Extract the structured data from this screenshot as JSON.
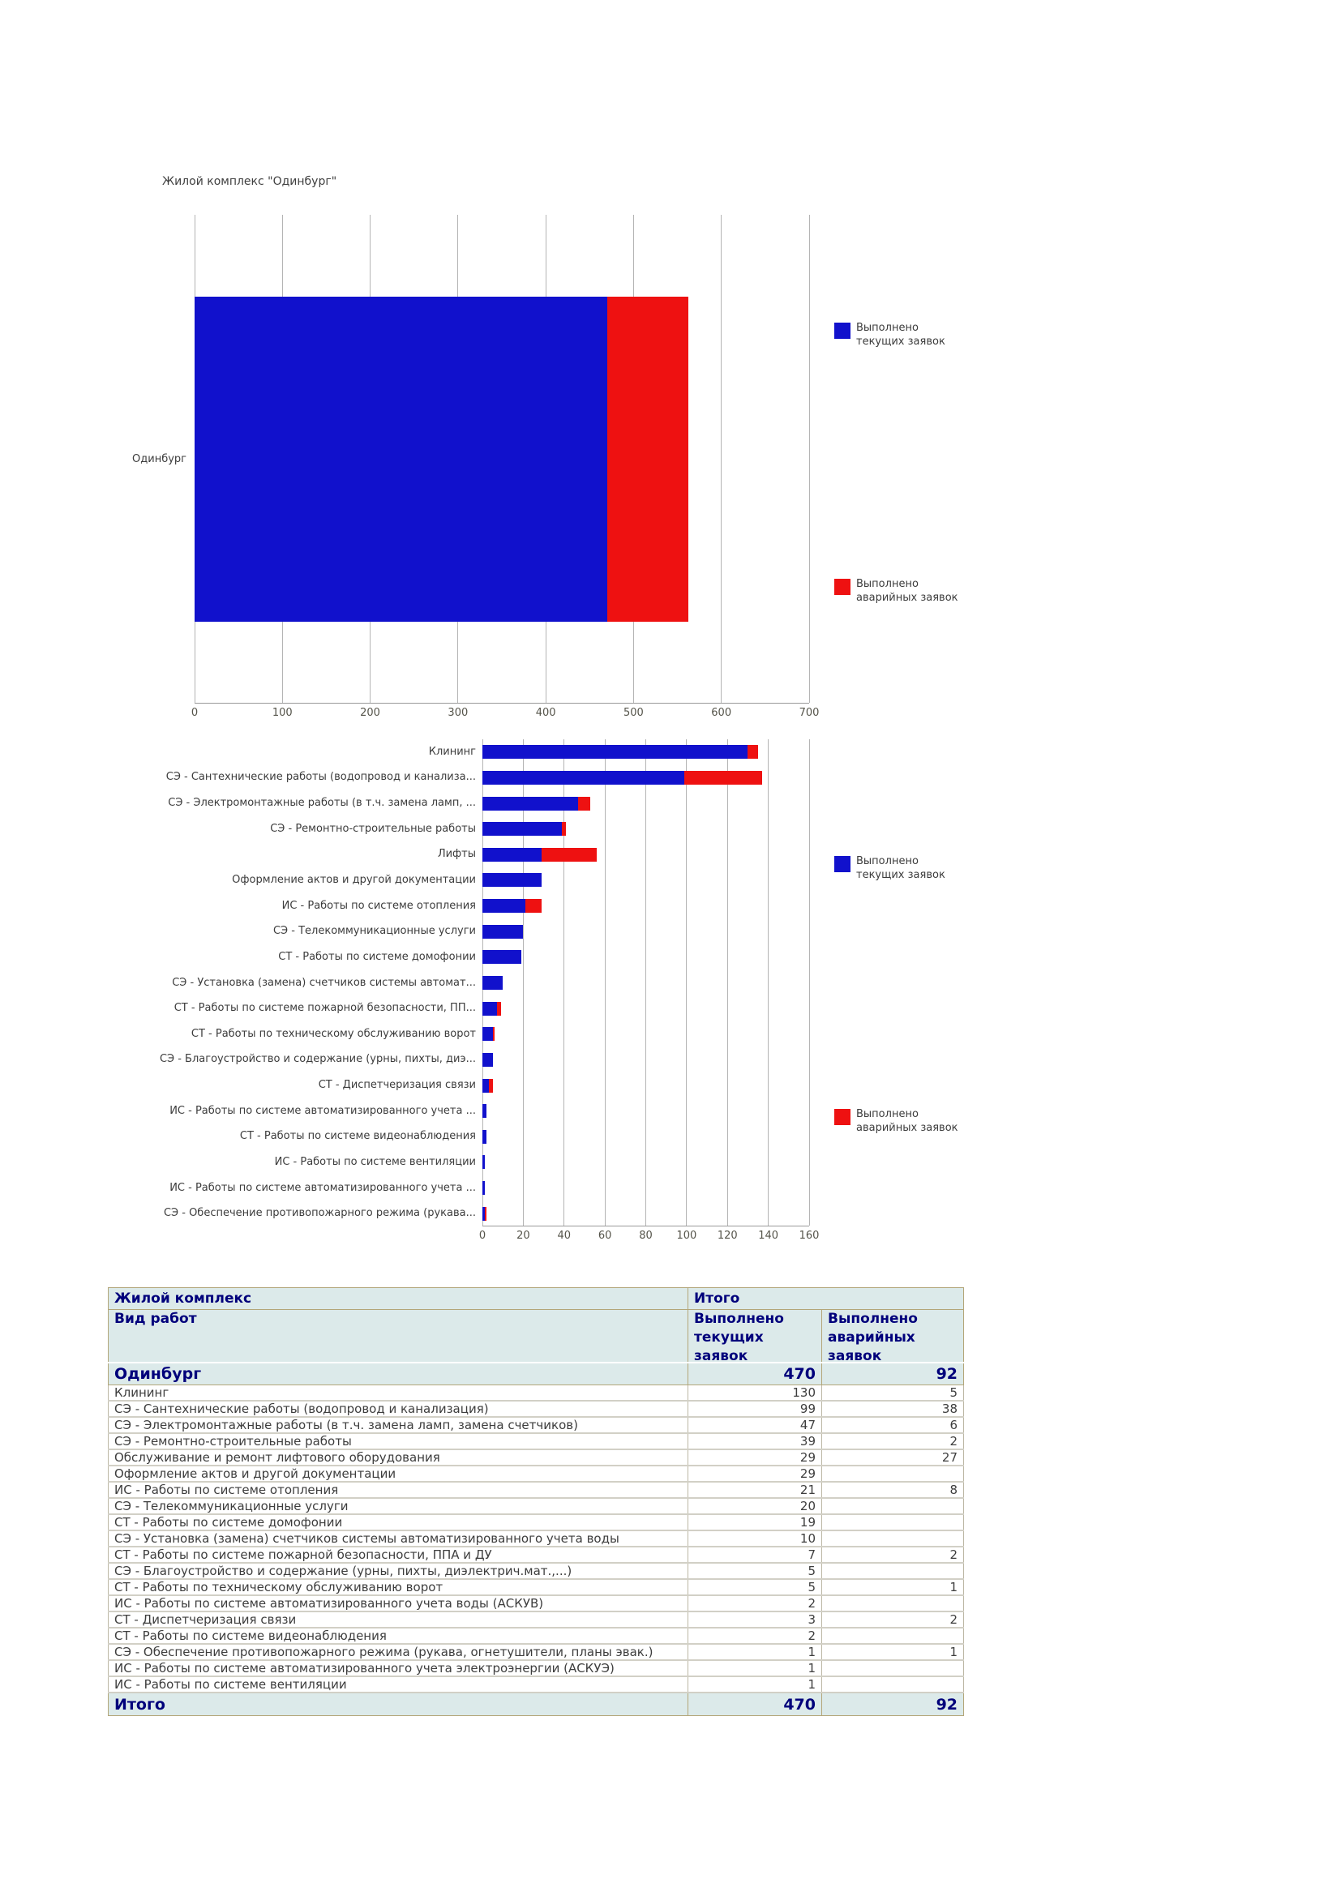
{
  "colors": {
    "current_requests_blue": "#1111cc",
    "emergency_requests_red": "#ee1111",
    "table_header_bg": "#dceaea",
    "table_border_tan": "#b3a679",
    "navy_text": "#00007b"
  },
  "chart_data": [
    {
      "type": "bar",
      "orientation": "horizontal",
      "stacked": true,
      "title": "Жилой комплекс \"Одинбург\"",
      "categories": [
        "Одинбург"
      ],
      "series": [
        {
          "name": "Выполнено текущих заявок",
          "color": "#1111cc",
          "values": [
            470
          ]
        },
        {
          "name": "Выполнено аварийных заявок",
          "color": "#ee1111",
          "values": [
            92
          ]
        }
      ],
      "xlim": [
        0,
        700
      ],
      "xticks": [
        0,
        100,
        200,
        300,
        400,
        500,
        600,
        700
      ],
      "grid": "vertical",
      "legend_position": "right"
    },
    {
      "type": "bar",
      "orientation": "horizontal",
      "stacked": true,
      "title": "",
      "categories": [
        "Клининг",
        "СЭ - Сантехнические работы (водопровод и канализа...",
        "СЭ - Электромонтажные работы (в т.ч. замена ламп, ...",
        "СЭ - Ремонтно-строительные работы",
        "Лифты",
        "Оформление актов и другой документации",
        "ИС - Работы по системе отопления",
        "СЭ - Телекоммуникационные услуги",
        "СТ - Работы по системе домофонии",
        "СЭ - Установка (замена) счетчиков системы автомат...",
        "СТ - Работы по системе пожарной безопасности, ПП...",
        "СТ - Работы по техническому обслуживанию ворот",
        "СЭ - Благоустройство и содержание (урны, пихты, диэ...",
        "СТ - Диспетчеризация связи",
        "ИС - Работы по системе автоматизированного учета ...",
        "СТ - Работы по системе видеонаблюдения",
        "ИС - Работы по системе вентиляции",
        "ИС - Работы по системе автоматизированного учета ...",
        "СЭ - Обеспечение противопожарного режима (рукава..."
      ],
      "series": [
        {
          "name": "Выполнено текущих заявок",
          "color": "#1111cc",
          "values": [
            130,
            99,
            47,
            39,
            29,
            29,
            21,
            20,
            19,
            10,
            7,
            5,
            5,
            3,
            2,
            2,
            1,
            1,
            1
          ]
        },
        {
          "name": "Выполнено аварийных заявок",
          "color": "#ee1111",
          "values": [
            5,
            38,
            6,
            2,
            27,
            0,
            8,
            0,
            0,
            0,
            2,
            1,
            0,
            2,
            0,
            0,
            0,
            0,
            1
          ]
        }
      ],
      "xlim": [
        0,
        160
      ],
      "xticks": [
        0,
        20,
        40,
        60,
        80,
        100,
        120,
        140,
        160
      ],
      "grid": "vertical",
      "legend_position": "right"
    }
  ],
  "table": {
    "header": {
      "complex_label": "Жилой комплекс",
      "total_label": "Итого",
      "work_type_label": "Вид работ",
      "current_label": "Выполнено текущих заявок",
      "emergency_label": "Выполнено аварийных заявок"
    },
    "groups": [
      {
        "label": "Одинбург",
        "current": "470",
        "emergency": "92",
        "rows": [
          {
            "label": "Клининг",
            "current": "130",
            "emergency": "5"
          },
          {
            "label": "СЭ - Сантехнические работы (водопровод и канализация)",
            "current": "99",
            "emergency": "38"
          },
          {
            "label": "СЭ - Электромонтажные работы (в т.ч. замена ламп, замена счетчиков)",
            "current": "47",
            "emergency": "6"
          },
          {
            "label": "СЭ - Ремонтно-строительные работы",
            "current": "39",
            "emergency": "2"
          },
          {
            "label": "Обслуживание и ремонт лифтового оборудования",
            "current": "29",
            "emergency": "27"
          },
          {
            "label": "Оформление актов и другой документации",
            "current": "29",
            "emergency": ""
          },
          {
            "label": "ИС - Работы по системе отопления",
            "current": "21",
            "emergency": "8"
          },
          {
            "label": "СЭ - Телекоммуникационные услуги",
            "current": "20",
            "emergency": ""
          },
          {
            "label": "СТ - Работы по системе домофонии",
            "current": "19",
            "emergency": ""
          },
          {
            "label": "СЭ - Установка (замена) счетчиков системы автоматизированного учета воды",
            "current": "10",
            "emergency": ""
          },
          {
            "label": "СТ - Работы по системе пожарной безопасности, ППА и ДУ",
            "current": "7",
            "emergency": "2"
          },
          {
            "label": "СЭ - Благоустройство и содержание (урны, пихты, диэлектрич.мат.,...)",
            "current": "5",
            "emergency": ""
          },
          {
            "label": "СТ - Работы по техническому обслуживанию ворот",
            "current": "5",
            "emergency": "1"
          },
          {
            "label": "ИС - Работы по системе автоматизированного учета воды (АСКУВ)",
            "current": "2",
            "emergency": ""
          },
          {
            "label": "СТ - Диспетчеризация связи",
            "current": "3",
            "emergency": "2"
          },
          {
            "label": "СТ - Работы по системе видеонаблюдения",
            "current": "2",
            "emergency": ""
          },
          {
            "label": "СЭ - Обеспечение противопожарного режима (рукава, огнетушители, планы эвак.)",
            "current": "1",
            "emergency": "1"
          },
          {
            "label": "ИС - Работы по системе автоматизированного учета электроэнергии (АСКУЭ)",
            "current": "1",
            "emergency": ""
          },
          {
            "label": "ИС - Работы по системе вентиляции",
            "current": "1",
            "emergency": ""
          }
        ]
      }
    ],
    "total": {
      "label": "Итого",
      "current": "470",
      "emergency": "92"
    }
  }
}
